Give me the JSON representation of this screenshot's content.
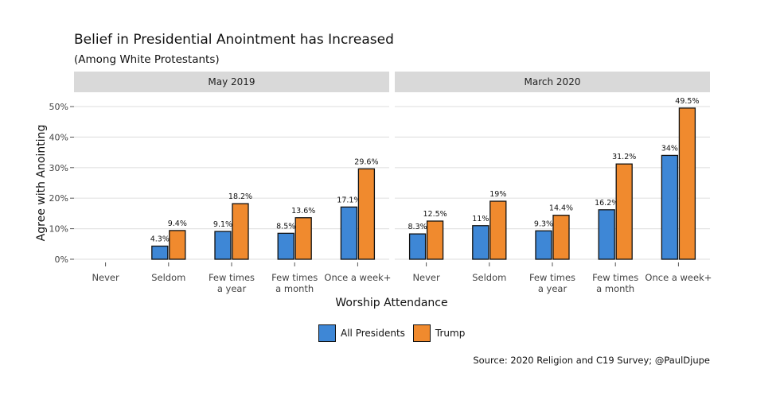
{
  "header": {
    "title": "Belief in Presidential Anointment has Increased",
    "subtitle": "(Among White Protestants)"
  },
  "caption": "Source: 2020 Religion and C19 Survey; @PaulDjupe",
  "colors": {
    "all_presidents": "#3e87d6",
    "trump": "#f08a2e",
    "strip_bg": "#d9d9d9",
    "grid": "#e3e3e3"
  },
  "chart_data": {
    "type": "bar",
    "xlabel": "Worship Attendance",
    "ylabel": "Agree with Anointing",
    "ylim": [
      0,
      50
    ],
    "yticks": [
      "0%",
      "10%",
      "20%",
      "30%",
      "40%",
      "50%"
    ],
    "ytick_values": [
      0,
      10,
      20,
      30,
      40,
      50
    ],
    "categories": [
      [
        "Never"
      ],
      [
        "Seldom"
      ],
      [
        "Few times",
        "a year"
      ],
      [
        "Few times",
        "a month"
      ],
      [
        "Once a week+"
      ]
    ],
    "legend": [
      "All Presidents",
      "Trump"
    ],
    "facets": [
      {
        "label": "May 2019",
        "series": [
          {
            "name": "All Presidents",
            "values": [
              null,
              4.3,
              9.1,
              8.5,
              17.1
            ],
            "labels": [
              "",
              "4.3%",
              "9.1%",
              "8.5%",
              "17.1%"
            ]
          },
          {
            "name": "Trump",
            "values": [
              null,
              9.4,
              18.2,
              13.6,
              29.6
            ],
            "labels": [
              "",
              "9.4%",
              "18.2%",
              "13.6%",
              "29.6%"
            ]
          }
        ]
      },
      {
        "label": "March 2020",
        "series": [
          {
            "name": "All Presidents",
            "values": [
              8.3,
              11,
              9.3,
              16.2,
              34
            ],
            "labels": [
              "8.3%",
              "11%",
              "9.3%",
              "16.2%",
              "34%"
            ]
          },
          {
            "name": "Trump",
            "values": [
              12.5,
              19,
              14.4,
              31.2,
              49.5
            ],
            "labels": [
              "12.5%",
              "19%",
              "14.4%",
              "31.2%",
              "49.5%"
            ]
          }
        ]
      }
    ]
  }
}
